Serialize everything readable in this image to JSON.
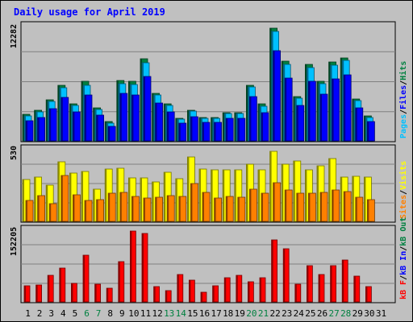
{
  "chart_data": [
    {
      "type": "bar",
      "title": "Daily usage for April 2019",
      "panel": "top",
      "y_max_label": "12282",
      "side_labels": [
        "Pages",
        "Files",
        "Hits"
      ],
      "x": [
        1,
        2,
        3,
        4,
        5,
        6,
        7,
        8,
        9,
        10,
        11,
        12,
        13,
        14,
        15,
        16,
        17,
        18,
        19,
        20,
        21,
        22,
        23,
        24,
        25,
        26,
        27,
        28,
        29,
        30,
        31
      ],
      "weekend_days": [
        6,
        7,
        13,
        14,
        20,
        21,
        27,
        28
      ],
      "series": [
        {
          "name": "Hits",
          "color": "#008040",
          "values": [
            3050,
            3470,
            4700,
            6380,
            4210,
            6800,
            3820,
            2200,
            6920,
            6820,
            9410,
            5460,
            4240,
            2610,
            3530,
            2680,
            2680,
            3260,
            3260,
            6380,
            4240,
            12980,
            9150,
            5120,
            8760,
            6800,
            9040,
            9480,
            4780,
            2860,
            0
          ]
        },
        {
          "name": "Files",
          "color": "#00c0ff",
          "values": [
            2860,
            3320,
            4560,
            6100,
            4020,
            6380,
            3580,
            2040,
            6590,
            6460,
            9010,
            5260,
            4020,
            2530,
            3390,
            2580,
            2580,
            3130,
            3120,
            6150,
            3980,
            12560,
            8780,
            4900,
            8380,
            6550,
            8690,
            9200,
            4620,
            2720,
            0
          ]
        },
        {
          "name": "Pages",
          "color": "#0000ff",
          "values": [
            2350,
            2720,
            3740,
            5010,
            3290,
            5240,
            2950,
            1660,
            5410,
            5300,
            7400,
            4320,
            3290,
            2070,
            2780,
            2120,
            2120,
            2570,
            2560,
            5040,
            3270,
            10310,
            7210,
            4020,
            6880,
            5380,
            7130,
            7550,
            3790,
            2230,
            0
          ]
        }
      ]
    },
    {
      "type": "bar",
      "panel": "middle",
      "y_max_label": "530",
      "side_labels": [
        "Sites",
        "Visits"
      ],
      "x": [
        1,
        2,
        3,
        4,
        5,
        6,
        7,
        8,
        9,
        10,
        11,
        12,
        13,
        14,
        15,
        16,
        17,
        18,
        19,
        20,
        21,
        22,
        23,
        24,
        25,
        26,
        27,
        28,
        29,
        30,
        31
      ],
      "series": [
        {
          "name": "Visits",
          "color": "#ffff00",
          "values": [
            300,
            315,
            260,
            425,
            345,
            360,
            230,
            375,
            380,
            310,
            310,
            285,
            350,
            305,
            460,
            375,
            370,
            370,
            370,
            410,
            370,
            500,
            410,
            430,
            370,
            395,
            450,
            315,
            325,
            315,
            0
          ]
        },
        {
          "name": "Sites",
          "color": "#ff8000",
          "values": [
            150,
            185,
            125,
            330,
            190,
            150,
            155,
            200,
            205,
            180,
            165,
            170,
            185,
            180,
            270,
            205,
            165,
            180,
            175,
            230,
            200,
            275,
            225,
            200,
            200,
            205,
            225,
            215,
            175,
            155,
            0
          ]
        }
      ]
    },
    {
      "type": "bar",
      "panel": "bottom",
      "y_max_label": "152205",
      "side_labels": [
        "kB F",
        "kB In",
        "kB Out"
      ],
      "x": [
        1,
        2,
        3,
        4,
        5,
        6,
        7,
        8,
        9,
        10,
        11,
        12,
        13,
        14,
        15,
        16,
        17,
        18,
        19,
        20,
        21,
        22,
        23,
        24,
        25,
        26,
        27,
        28,
        29,
        30,
        31
      ],
      "series": [
        {
          "name": "kB F",
          "color": "#ff0000",
          "values": [
            33000,
            34000,
            54000,
            70000,
            38000,
            96000,
            37000,
            28000,
            82000,
            145000,
            140000,
            32000,
            23000,
            57000,
            44000,
            20000,
            33000,
            49000,
            54000,
            42000,
            49000,
            127000,
            110000,
            36000,
            74000,
            57000,
            75000,
            86000,
            53000,
            32000,
            0
          ]
        }
      ]
    }
  ]
}
